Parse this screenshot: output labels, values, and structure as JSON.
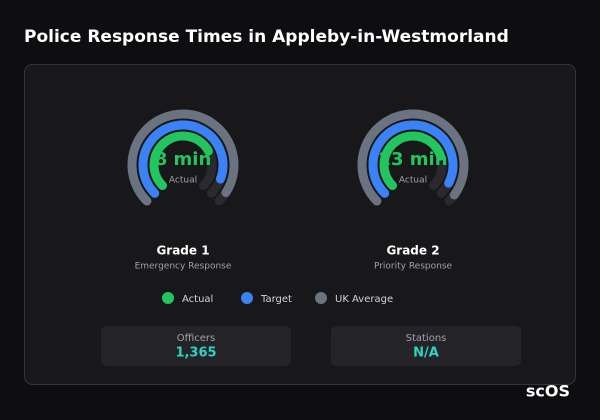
{
  "chart_data": {
    "type": "radial",
    "title": "Police Response Times in Appleby-in-Westmorland",
    "categories": [
      "Grade 1",
      "Grade 2"
    ],
    "subtitles": [
      "Emergency Response",
      "Priority Response"
    ],
    "center_caption": "Actual",
    "rlims": [
      [
        0,
        11
      ],
      [
        0,
        30
      ]
    ],
    "series": [
      {
        "name": "Actual",
        "color": "#22c55e",
        "values": [
          8,
          23
        ],
        "value_labels": [
          "8 min",
          "23 min"
        ]
      },
      {
        "name": "Target",
        "color": "#3b82f6",
        "values": [
          10,
          28
        ]
      },
      {
        "name": "UK Average",
        "color": "#6b7280",
        "values": [
          10.5,
          29
        ]
      }
    ]
  },
  "stats": [
    {
      "label": "Officers",
      "value": "1,365"
    },
    {
      "label": "Stations",
      "value": "N/A"
    }
  ],
  "logo": "scOS"
}
